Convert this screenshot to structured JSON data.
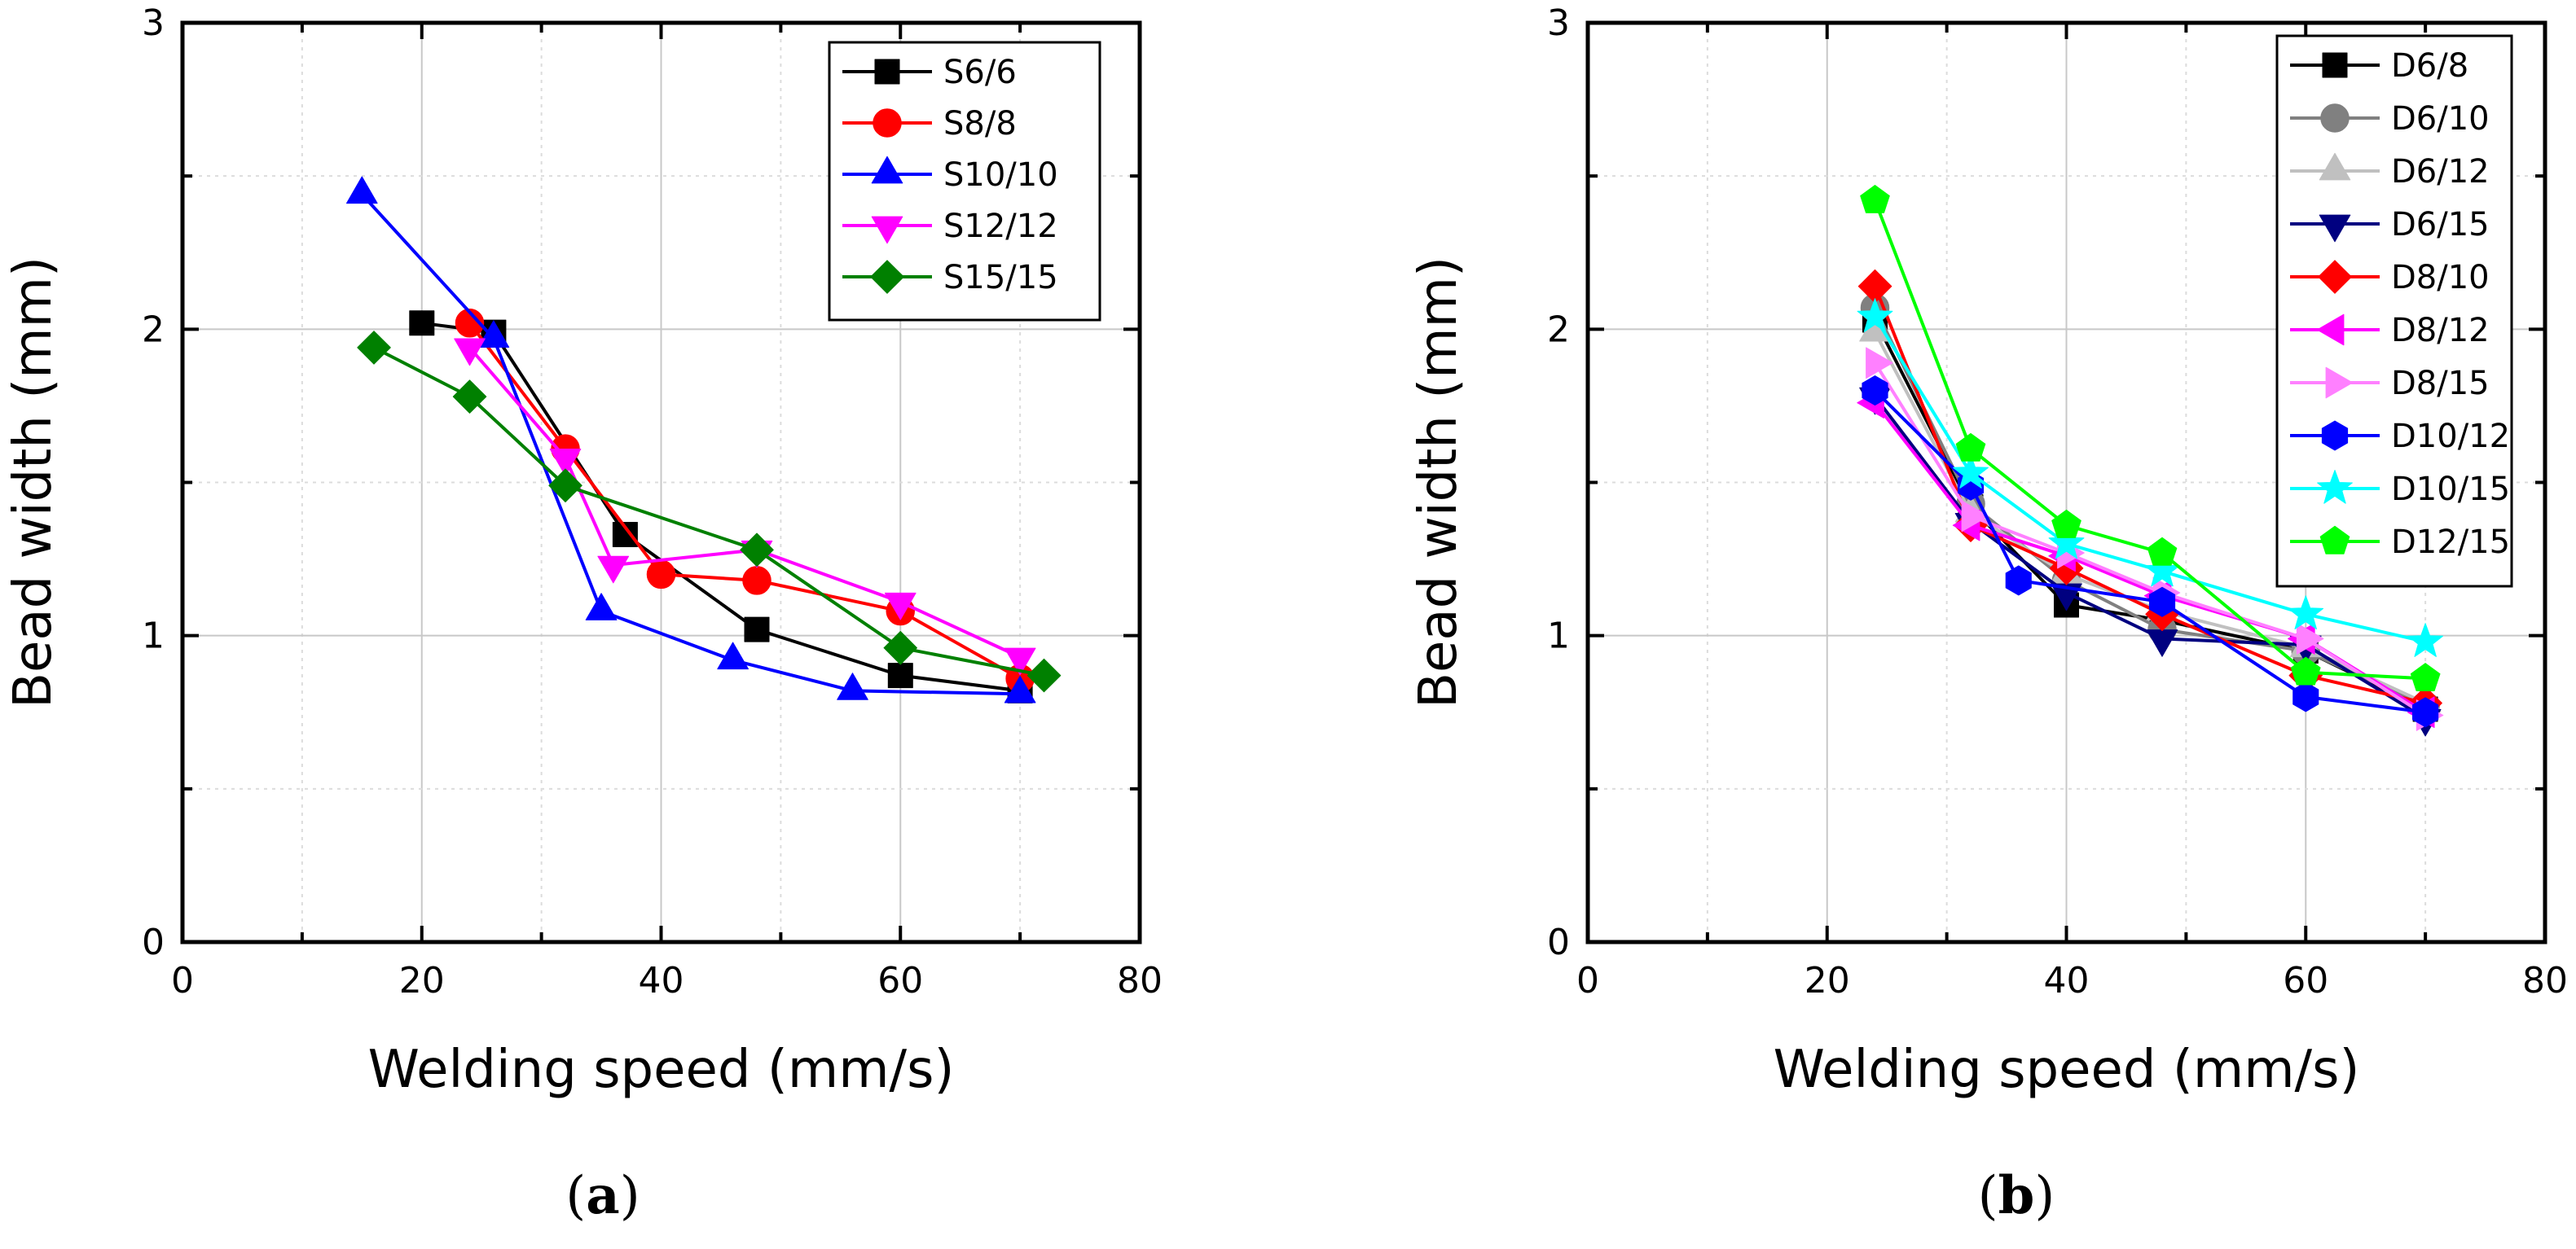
{
  "chart_data": [
    {
      "type": "line",
      "caption_letter": "a",
      "xlabel": "Welding speed (mm/s)",
      "ylabel": "Bead width (mm)",
      "xlim": [
        0,
        80
      ],
      "ylim": [
        0,
        3
      ],
      "xticks": [
        0,
        20,
        40,
        60,
        80
      ],
      "yticks": [
        0,
        1,
        2,
        3
      ],
      "grid": true,
      "legend_position": "top-right",
      "series": [
        {
          "name": "S6/6",
          "color": "#000000",
          "marker": "square",
          "x": [
            20,
            26,
            37,
            48,
            60,
            70
          ],
          "y": [
            2.02,
            1.99,
            1.33,
            1.02,
            0.87,
            0.82
          ]
        },
        {
          "name": "S8/8",
          "color": "#ff0000",
          "marker": "circle",
          "x": [
            24,
            32,
            40,
            48,
            60,
            70
          ],
          "y": [
            2.02,
            1.61,
            1.2,
            1.18,
            1.08,
            0.86
          ]
        },
        {
          "name": "S10/10",
          "color": "#0000ff",
          "marker": "triangle-up",
          "x": [
            15,
            26,
            35,
            46,
            56,
            70
          ],
          "y": [
            2.44,
            1.97,
            1.08,
            0.92,
            0.82,
            0.81
          ]
        },
        {
          "name": "S12/12",
          "color": "#ff00ff",
          "marker": "triangle-down",
          "x": [
            24,
            32,
            36,
            48,
            60,
            70
          ],
          "y": [
            1.94,
            1.58,
            1.23,
            1.28,
            1.11,
            0.93
          ]
        },
        {
          "name": "S15/15",
          "color": "#008000",
          "marker": "diamond",
          "x": [
            16,
            24,
            32,
            48,
            60,
            72
          ],
          "y": [
            1.94,
            1.78,
            1.49,
            1.28,
            0.96,
            0.87
          ]
        }
      ]
    },
    {
      "type": "line",
      "caption_letter": "b",
      "xlabel": "Welding speed (mm/s)",
      "ylabel": "Bead width (mm)",
      "xlim": [
        0,
        80
      ],
      "ylim": [
        0,
        3
      ],
      "xticks": [
        0,
        20,
        40,
        60,
        80
      ],
      "yticks": [
        0,
        1,
        2,
        3
      ],
      "grid": true,
      "legend_position": "top-right",
      "series": [
        {
          "name": "D6/8",
          "color": "#000000",
          "marker": "square",
          "x": [
            24,
            32,
            40,
            48,
            60,
            70
          ],
          "y": [
            2.03,
            1.42,
            1.1,
            1.05,
            0.95,
            0.76
          ]
        },
        {
          "name": "D6/10",
          "color": "#808080",
          "marker": "circle",
          "x": [
            24,
            32,
            40,
            48,
            60,
            70
          ],
          "y": [
            2.07,
            1.43,
            1.18,
            1.02,
            0.95,
            0.77
          ]
        },
        {
          "name": "D6/12",
          "color": "#c0c0c0",
          "marker": "triangle-up",
          "x": [
            24,
            32,
            40,
            48,
            60,
            70
          ],
          "y": [
            1.99,
            1.4,
            1.2,
            1.08,
            0.96,
            0.78
          ]
        },
        {
          "name": "D6/15",
          "color": "#000080",
          "marker": "triangle-down",
          "x": [
            24,
            32,
            40,
            48,
            60,
            70
          ],
          "y": [
            1.78,
            1.37,
            1.14,
            0.99,
            0.97,
            0.73
          ]
        },
        {
          "name": "D8/10",
          "color": "#ff0000",
          "marker": "diamond",
          "x": [
            24,
            32,
            40,
            48,
            60,
            70
          ],
          "y": [
            2.14,
            1.36,
            1.22,
            1.07,
            0.87,
            0.78
          ]
        },
        {
          "name": "D8/12",
          "color": "#ff00ff",
          "marker": "triangle-left",
          "x": [
            24,
            32,
            40,
            48,
            60,
            70
          ],
          "y": [
            1.76,
            1.36,
            1.26,
            1.13,
            0.99,
            0.75
          ]
        },
        {
          "name": "D8/15",
          "color": "#ff80ff",
          "marker": "triangle-right",
          "x": [
            24,
            32,
            40,
            48,
            60,
            70
          ],
          "y": [
            1.89,
            1.39,
            1.27,
            1.14,
            0.99,
            0.74
          ]
        },
        {
          "name": "D10/12",
          "color": "#0000ff",
          "marker": "hexagon",
          "x": [
            24,
            32,
            36,
            48,
            60,
            70
          ],
          "y": [
            1.8,
            1.49,
            1.18,
            1.11,
            0.8,
            0.75
          ]
        },
        {
          "name": "D10/15",
          "color": "#00ffff",
          "marker": "star",
          "x": [
            24,
            32,
            40,
            48,
            60,
            70
          ],
          "y": [
            2.04,
            1.53,
            1.3,
            1.21,
            1.07,
            0.98
          ]
        },
        {
          "name": "D12/15",
          "color": "#00ff00",
          "marker": "pentagon",
          "x": [
            24,
            32,
            40,
            48,
            60,
            70
          ],
          "y": [
            2.42,
            1.61,
            1.36,
            1.27,
            0.88,
            0.86
          ]
        }
      ]
    }
  ]
}
